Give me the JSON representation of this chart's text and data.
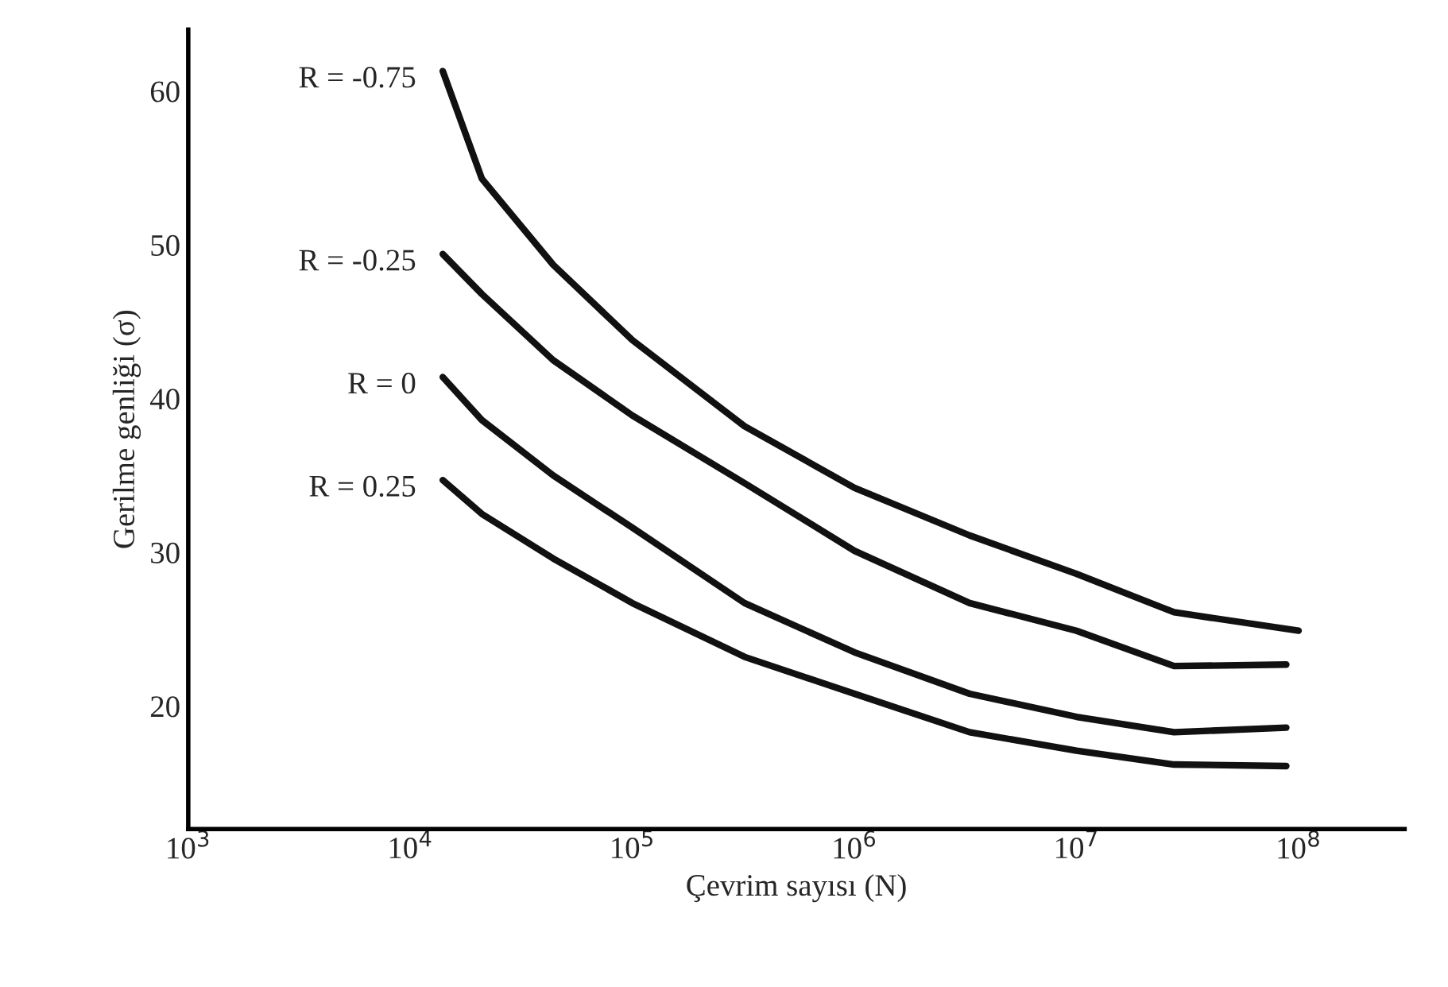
{
  "chart_data": {
    "type": "line",
    "xlabel": "Çevrim sayısı (N)",
    "ylabel": "Gerilme genliği (σ)",
    "log": "x",
    "xlim": [
      1000,
      300000000
    ],
    "xticks": [
      {
        "value": 1000,
        "label": "10$^{3}$"
      },
      {
        "value": 10000,
        "label": "10$^{4}$"
      },
      {
        "value": 100000,
        "label": "10$^{5}$"
      },
      {
        "value": 1000000,
        "label": "10$^{6}$"
      },
      {
        "value": 10000000,
        "label": "10$^{7}$"
      },
      {
        "value": 100000000,
        "label": "10$^{8}$"
      }
    ],
    "ylim": [
      12,
      64
    ],
    "yticks": [
      20,
      30,
      40,
      50,
      60
    ],
    "grid": false,
    "legend": false,
    "marker": "none",
    "line_style": "solid",
    "series": [
      {
        "name": "R = -0.75",
        "color": "#111111",
        "x": [
          14000,
          21000,
          44000,
          100000,
          320000,
          1000000,
          3300000,
          10000000,
          27500000,
          100000000
        ],
        "values": [
          61.3,
          54.3,
          48.7,
          43.8,
          38.2,
          34.2,
          31.1,
          28.6,
          26.1,
          24.9
        ]
      },
      {
        "name": "R = -0.25",
        "color": "#111111",
        "x": [
          14000,
          21000,
          44000,
          100000,
          320000,
          1000000,
          3300000,
          10000000,
          27500000,
          88000000
        ],
        "values": [
          49.4,
          46.8,
          42.5,
          38.9,
          34.5,
          30.1,
          26.7,
          24.9,
          22.6,
          22.7
        ]
      },
      {
        "name": "R = 0",
        "color": "#111111",
        "x": [
          14000,
          21000,
          44000,
          100000,
          320000,
          1000000,
          3300000,
          10000000,
          27500000,
          88000000
        ],
        "values": [
          41.4,
          38.6,
          35.0,
          31.6,
          26.7,
          23.5,
          20.8,
          19.3,
          18.3,
          18.6
        ]
      },
      {
        "name": "R = 0.25",
        "color": "#111111",
        "x": [
          14000,
          21000,
          44000,
          100000,
          320000,
          1000000,
          3300000,
          10000000,
          27500000,
          88000000
        ],
        "values": [
          34.7,
          32.5,
          29.6,
          26.7,
          23.2,
          20.8,
          18.3,
          17.1,
          16.2,
          16.1
        ]
      }
    ]
  }
}
